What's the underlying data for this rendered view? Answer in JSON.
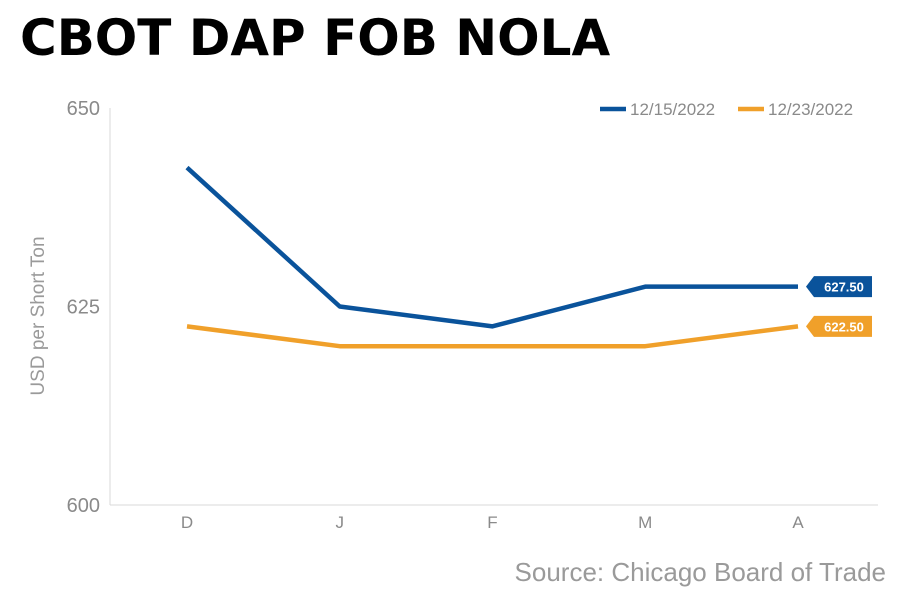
{
  "title": "CBOT DAP FOB NOLA",
  "source": "Source: Chicago Board of Trade",
  "chart_data": {
    "type": "line",
    "title": "CBOT DAP FOB NOLA",
    "xlabel": "",
    "ylabel": "USD per Short Ton",
    "categories": [
      "D",
      "J",
      "F",
      "M",
      "A"
    ],
    "ylim": [
      600,
      650
    ],
    "yticks": [
      "600",
      "625",
      "650"
    ],
    "grid": false,
    "legend_position": "top-right",
    "series": [
      {
        "name": "12/15/2022",
        "color": "#0a539b",
        "values": [
          642.5,
          625,
          622.5,
          627.5,
          627.5
        ],
        "end_label": "627.50"
      },
      {
        "name": "12/23/2022",
        "color": "#f0a02a",
        "values": [
          622.5,
          620,
          620,
          620,
          622.5
        ],
        "end_label": "622.50"
      }
    ]
  }
}
